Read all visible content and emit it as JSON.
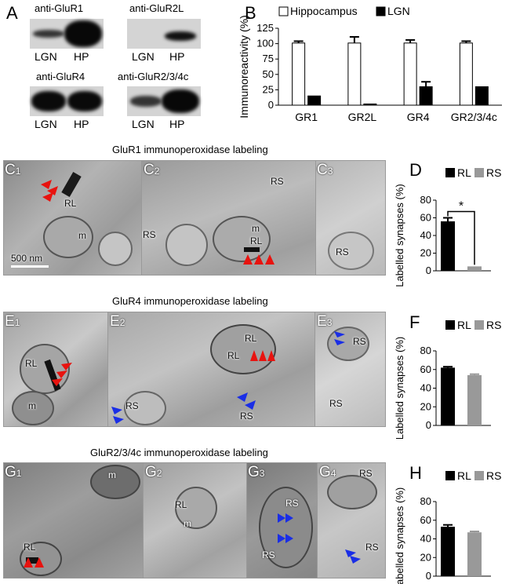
{
  "panel_letters": {
    "A": "A",
    "B": "B",
    "C1": "C",
    "C1n": "1",
    "C2": "C",
    "C2n": "2",
    "C3": "C",
    "C3n": "3",
    "D": "D",
    "E1": "E",
    "E1n": "1",
    "E2": "E",
    "E2n": "2",
    "E3": "E",
    "E3n": "3",
    "F": "F",
    "G1": "G",
    "G1n": "1",
    "G2": "G",
    "G2n": "2",
    "G3": "G",
    "G3n": "3",
    "G4": "G",
    "G4n": "4",
    "H": "H"
  },
  "blots": [
    {
      "title": "anti-GluR1",
      "left": "LGN",
      "right": "HP"
    },
    {
      "title": "anti-GluR2L",
      "left": "LGN",
      "right": "HP"
    },
    {
      "title": "anti-GluR4",
      "left": "LGN",
      "right": "HP"
    },
    {
      "title": "anti-GluR2/3/4c",
      "left": "LGN",
      "right": "HP"
    }
  ],
  "row_titles": {
    "c": "GluR1 immunoperoxidase labeling",
    "e": "GluR4 immunoperoxidase labeling",
    "g": "GluR2/3/4c immunoperoxidase labeling"
  },
  "em_labels": {
    "c1_rl": "RL",
    "c1_m": "m",
    "scale": "500 nm",
    "c2_rs_top": "RS",
    "c2_rs_left": "RS",
    "c2_m": "m",
    "c2_rl": "RL",
    "c3_rs": "RS",
    "e1_rl": "RL",
    "e1_m": "m",
    "e2_rl": "RL",
    "e2_rs_bl": "RS",
    "e2_rs_b": "RS",
    "e3_rs_top": "RS",
    "e3_rs_b": "RS",
    "g1_m": "m",
    "g1_rl": "RL",
    "g2_rl": "RL",
    "g2_m": "m",
    "g3_rs_t": "RS",
    "g3_rs_b": "RS",
    "g4_rs_t": "RS",
    "g4_rs_b": "RS"
  },
  "colors": {
    "red_arrow": "#e8130f",
    "blue_arrow": "#1a2ee6",
    "rl_bar": "#000000",
    "rs_bar": "#999999"
  },
  "chart_data": [
    {
      "type": "bar",
      "panel": "B",
      "categories": [
        "GR1",
        "GR2L",
        "GR4",
        "GR2/3/4c"
      ],
      "series": [
        {
          "name": "Hippocampus",
          "values": [
            101,
            101,
            101,
            101
          ],
          "errors": [
            3,
            10,
            5,
            3
          ],
          "color": "#ffffff"
        },
        {
          "name": "LGN",
          "values": [
            15,
            2,
            30,
            30
          ],
          "errors": [
            0,
            0,
            8,
            0
          ],
          "color": "#000000"
        }
      ],
      "ylabel": "Immunoreactivity (%)",
      "ylim": [
        0,
        125
      ],
      "yticks": [
        0,
        25,
        50,
        75,
        100,
        125
      ],
      "legend": "top"
    },
    {
      "type": "bar",
      "panel": "D",
      "categories": [
        "RL",
        "RS"
      ],
      "values": [
        56,
        5
      ],
      "errors": [
        4,
        0
      ],
      "colors": [
        "#000000",
        "#999999"
      ],
      "legend": [
        "RL",
        "RS"
      ],
      "ylabel": "Labelled synapses (%)",
      "ylim": [
        0,
        80
      ],
      "yticks": [
        0,
        20,
        40,
        60,
        80
      ],
      "annotation": "*"
    },
    {
      "type": "bar",
      "panel": "F",
      "categories": [
        "RL",
        "RS"
      ],
      "values": [
        62,
        54
      ],
      "errors": [
        1,
        1
      ],
      "colors": [
        "#000000",
        "#999999"
      ],
      "legend": [
        "RL",
        "RS"
      ],
      "ylabel": "Labelled synapses (%)",
      "ylim": [
        0,
        80
      ],
      "yticks": [
        0,
        20,
        40,
        60,
        80
      ]
    },
    {
      "type": "bar",
      "panel": "H",
      "categories": [
        "RL",
        "RS"
      ],
      "values": [
        53,
        47
      ],
      "errors": [
        2,
        1
      ],
      "colors": [
        "#000000",
        "#999999"
      ],
      "legend": [
        "RL",
        "RS"
      ],
      "ylabel": "Labelled synapses (%)",
      "ylim": [
        0,
        80
      ],
      "yticks": [
        0,
        20,
        40,
        60,
        80
      ]
    }
  ]
}
